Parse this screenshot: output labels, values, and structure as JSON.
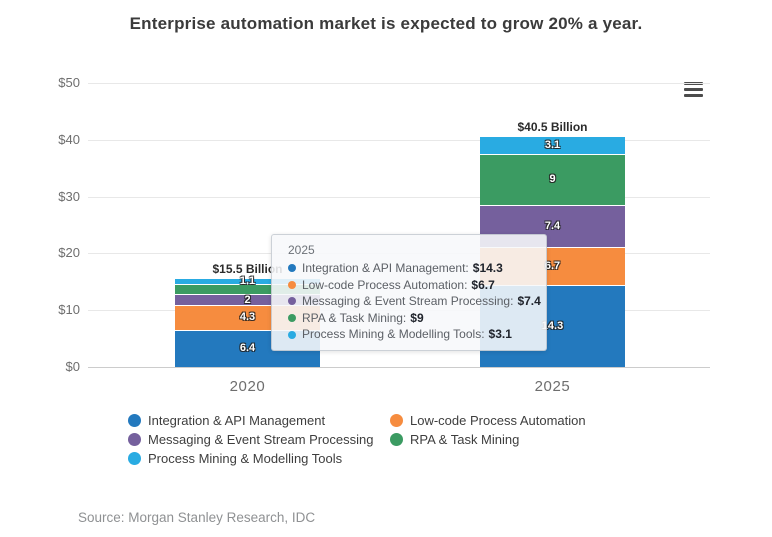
{
  "title": "Enterprise automation market is expected to grow 20% a year.",
  "source": "Source: Morgan Stanley Research, IDC",
  "menu_icon": "hamburger-menu",
  "chart_data": {
    "type": "bar",
    "stacked": true,
    "categories": [
      "2020",
      "2025"
    ],
    "series": [
      {
        "name": "Integration & API Management",
        "color": "#2379BE",
        "values": [
          6.4,
          14.3
        ],
        "labels": [
          "6.4",
          "14.3"
        ]
      },
      {
        "name": "Low-code Process Automation",
        "color": "#F68C3F",
        "values": [
          4.3,
          6.7
        ],
        "labels": [
          "4.3",
          "6.7"
        ]
      },
      {
        "name": "Messaging & Event Stream Processing",
        "color": "#75609D",
        "values": [
          2,
          7.4
        ],
        "labels": [
          "2",
          "7.4"
        ]
      },
      {
        "name": "RPA & Task Mining",
        "color": "#3B9B62",
        "values": [
          1.7,
          9
        ],
        "labels": [
          "",
          "9"
        ]
      },
      {
        "name": "Process Mining & Modelling Tools",
        "color": "#29ABE2",
        "values": [
          1.1,
          3.1
        ],
        "labels": [
          "1.1",
          "3.1"
        ]
      }
    ],
    "bar_totals": [
      "$15.5 Billion",
      "$40.5 Billion"
    ],
    "yticks": [
      0,
      10,
      20,
      30,
      40,
      50
    ],
    "ytick_labels": [
      "$0",
      "$10",
      "$20",
      "$30",
      "$40",
      "$50"
    ],
    "ylim": [
      0,
      50
    ],
    "grid": true,
    "legend_position": "bottom"
  },
  "tooltip": {
    "title": "2025",
    "items": [
      {
        "label": "Integration & API Management",
        "value": "$14.3",
        "color": "#2379BE"
      },
      {
        "label": "Low-code Process Automation",
        "value": "$6.7",
        "color": "#F68C3F"
      },
      {
        "label": "Messaging & Event Stream Processing",
        "value": "$7.4",
        "color": "#75609D"
      },
      {
        "label": "RPA & Task Mining",
        "value": "$9",
        "color": "#3B9B62"
      },
      {
        "label": "Process Mining & Modelling Tools",
        "value": "$3.1",
        "color": "#29ABE2"
      }
    ]
  },
  "legend": {
    "items": [
      {
        "label": "Integration & API Management",
        "color": "#2379BE"
      },
      {
        "label": "Low-code Process Automation",
        "color": "#F68C3F"
      },
      {
        "label": "Messaging & Event Stream Processing",
        "color": "#75609D"
      },
      {
        "label": "RPA & Task Mining",
        "color": "#3B9B62"
      },
      {
        "label": "Process Mining & Modelling Tools",
        "color": "#29ABE2"
      }
    ]
  }
}
